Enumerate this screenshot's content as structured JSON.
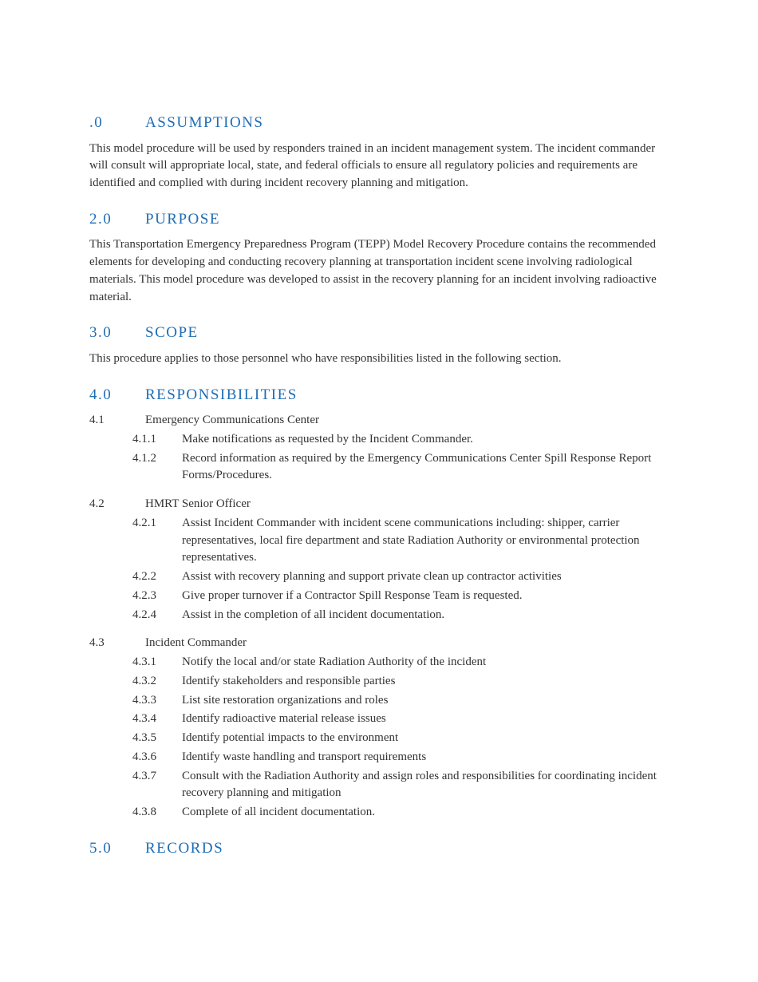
{
  "colors": {
    "heading": "#1f6db5",
    "body": "#333333",
    "background": "#ffffff"
  },
  "typography": {
    "heading_fontsize": 19,
    "heading_letterspacing": 1.5,
    "body_fontsize": 15
  },
  "sections": [
    {
      "num": ".0",
      "title": "ASSUMPTIONS",
      "body": "This model procedure will be used by responders trained in an incident management system.  The incident commander will consult will appropriate local, state, and federal officials to ensure all regulatory policies and requirements are identified and complied with during incident recovery planning and mitigation."
    },
    {
      "num": "2.0",
      "title": "PURPOSE",
      "body": "This Transportation Emergency Preparedness Program (TEPP) Model Recovery Procedure contains the recommended elements for developing and conducting recovery planning at transportation incident scene involving radiological materials.  This model procedure was developed to assist in the recovery planning for an incident involving radioactive material."
    },
    {
      "num": "3.0",
      "title": "SCOPE",
      "body": "This procedure applies to those personnel who have responsibilities listed in the following section."
    },
    {
      "num": "4.0",
      "title": "RESPONSIBILITIES",
      "subs": [
        {
          "num": "4.1",
          "label": "Emergency Communications Center",
          "items": [
            {
              "num": "4.1.1",
              "text": "Make notifications as requested by the Incident Commander."
            },
            {
              "num": "4.1.2",
              "text": "Record information as required by the Emergency Communications Center Spill Response Report Forms/Procedures."
            }
          ]
        },
        {
          "num": "4.2",
          "label": "HMRT Senior Officer",
          "items": [
            {
              "num": "4.2.1",
              "text": "Assist Incident Commander with incident scene communications including: shipper, carrier representatives, local fire department and state Radiation Authority or environmental protection representatives."
            },
            {
              "num": "4.2.2",
              "text": "Assist with recovery planning and support private clean up contractor activities"
            },
            {
              "num": "4.2.3",
              "text": "Give proper turnover if a Contractor Spill Response Team is requested."
            },
            {
              "num": "4.2.4",
              "text": "Assist in the completion of all incident documentation."
            }
          ]
        },
        {
          "num": "4.3",
          "label": "Incident Commander",
          "items": [
            {
              "num": "4.3.1",
              "text": "Notify the local and/or state Radiation Authority of the incident"
            },
            {
              "num": "4.3.2",
              "text": "Identify stakeholders and responsible parties"
            },
            {
              "num": "4.3.3",
              "text": "List site restoration organizations and roles"
            },
            {
              "num": "4.3.4",
              "text": "Identify radioactive material release issues"
            },
            {
              "num": "4.3.5",
              "text": "Identify potential impacts to the environment"
            },
            {
              "num": "4.3.6",
              "text": "Identify waste handling and transport requirements"
            },
            {
              "num": "4.3.7",
              "text": "Consult with the Radiation Authority and assign roles and responsibilities for coordinating incident recovery planning and mitigation"
            },
            {
              "num": "4.3.8",
              "text": "Complete of all incident documentation."
            }
          ]
        }
      ]
    },
    {
      "num": "5.0",
      "title": "RECORDS"
    }
  ]
}
